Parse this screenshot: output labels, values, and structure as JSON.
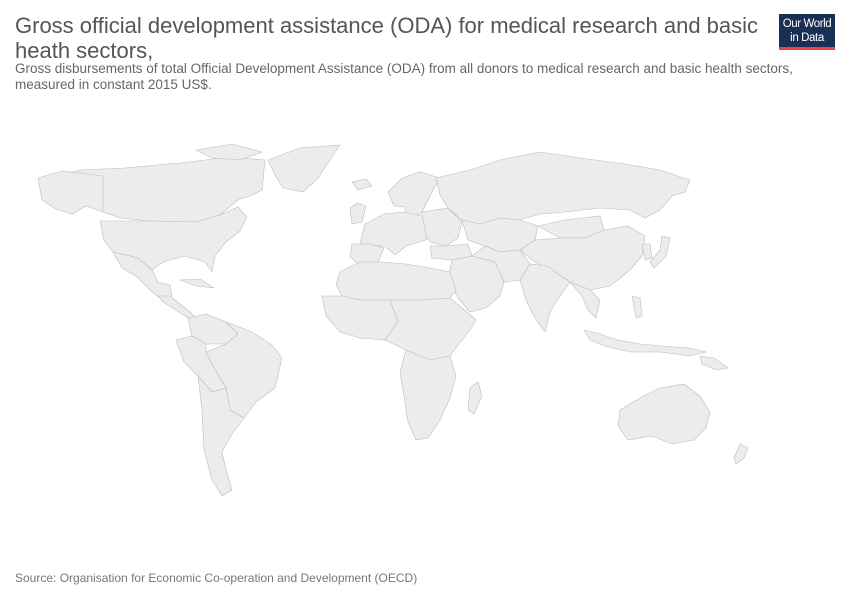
{
  "header": {
    "title": "Gross official development assistance (ODA) for medical research and basic heath sectors,",
    "subtitle": "Gross disbursements of total Official Development Assistance (ODA) from all donors to medical research and basic health sectors, measured in constant 2015 US$."
  },
  "logo": {
    "line1": "Our World",
    "line2": "in Data"
  },
  "footer": {
    "source": "Source: Organisation for Economic Co-operation and Development (OECD)"
  },
  "colors": {
    "land": "#ececec",
    "border": "#bdbdbd",
    "logo_bg": "#1a2f55",
    "logo_accent": "#e8473f"
  }
}
